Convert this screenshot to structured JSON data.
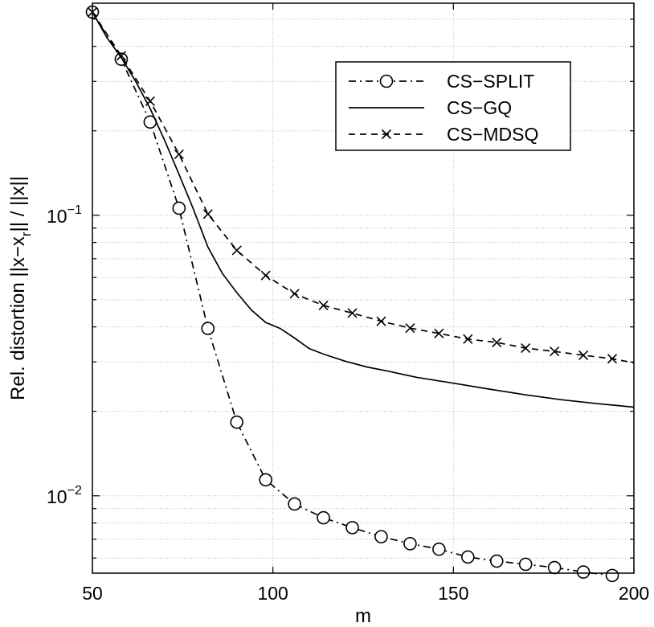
{
  "chart_data": {
    "type": "line",
    "title": "",
    "xlabel": "m",
    "ylabel": "Rel. distortion ||x−x_r|| / ||x||",
    "y_scale": "log",
    "xlim": [
      50,
      200
    ],
    "ylim": [
      0.0053,
      0.57
    ],
    "x_ticks": [
      50,
      100,
      150,
      200
    ],
    "y_ticks": [
      {
        "value": 0.1,
        "base": "10",
        "exp": "−1"
      },
      {
        "value": 0.01,
        "base": "10",
        "exp": "−2"
      }
    ],
    "grid": true,
    "legend_position": "top-right",
    "series": [
      {
        "name": "CS−SPLIT",
        "line_style": "dash-dot",
        "marker": "circle",
        "x": [
          50,
          58,
          66,
          74,
          82,
          90,
          98,
          106,
          114,
          122,
          130,
          138,
          146,
          154,
          162,
          170,
          178,
          186,
          194
        ],
        "y": [
          0.53,
          0.36,
          0.215,
          0.106,
          0.0395,
          0.0183,
          0.0114,
          0.00935,
          0.00835,
          0.0077,
          0.00715,
          0.00675,
          0.00645,
          0.00605,
          0.00585,
          0.0057,
          0.00555,
          0.00535,
          0.0052
        ],
        "marker_x": [
          50,
          58,
          66,
          74,
          82,
          90,
          98,
          106,
          114,
          122,
          130,
          138,
          146,
          154,
          162,
          170,
          178,
          186,
          194
        ],
        "marker_y": [
          0.53,
          0.36,
          0.215,
          0.106,
          0.0395,
          0.0183,
          0.0114,
          0.00935,
          0.00835,
          0.0077,
          0.00715,
          0.00675,
          0.00645,
          0.00605,
          0.00585,
          0.0057,
          0.00555,
          0.00535,
          0.0052
        ]
      },
      {
        "name": "CS−GQ",
        "line_style": "solid",
        "marker": "none",
        "x": [
          50,
          54,
          58,
          62,
          66,
          70,
          74,
          78,
          82,
          86,
          90,
          94,
          98,
          102,
          106,
          110,
          114,
          120,
          126,
          132,
          140,
          150,
          160,
          170,
          180,
          190,
          200
        ],
        "y": [
          0.53,
          0.43,
          0.365,
          0.3,
          0.24,
          0.185,
          0.14,
          0.105,
          0.077,
          0.062,
          0.053,
          0.046,
          0.0415,
          0.0395,
          0.0365,
          0.0335,
          0.032,
          0.0302,
          0.0288,
          0.0278,
          0.0264,
          0.0252,
          0.024,
          0.0229,
          0.022,
          0.0213,
          0.0207
        ],
        "marker_x": [],
        "marker_y": []
      },
      {
        "name": "CS−MDSQ",
        "line_style": "dashed",
        "marker": "x",
        "x": [
          50,
          58,
          66,
          74,
          82,
          90,
          98,
          106,
          114,
          122,
          130,
          138,
          146,
          154,
          162,
          170,
          178,
          186,
          194,
          200
        ],
        "y": [
          0.53,
          0.37,
          0.255,
          0.165,
          0.101,
          0.075,
          0.061,
          0.0525,
          0.0477,
          0.0448,
          0.0419,
          0.0396,
          0.0379,
          0.0362,
          0.0352,
          0.0336,
          0.0327,
          0.0317,
          0.0308,
          0.0298
        ],
        "marker_x": [
          50,
          58,
          66,
          74,
          82,
          90,
          98,
          106,
          114,
          122,
          130,
          138,
          146,
          154,
          162,
          170,
          178,
          186,
          194
        ],
        "marker_y": [
          0.53,
          0.37,
          0.255,
          0.165,
          0.101,
          0.075,
          0.061,
          0.0525,
          0.0477,
          0.0448,
          0.0419,
          0.0396,
          0.0379,
          0.0362,
          0.0352,
          0.0336,
          0.0327,
          0.0317,
          0.0308
        ]
      }
    ]
  }
}
